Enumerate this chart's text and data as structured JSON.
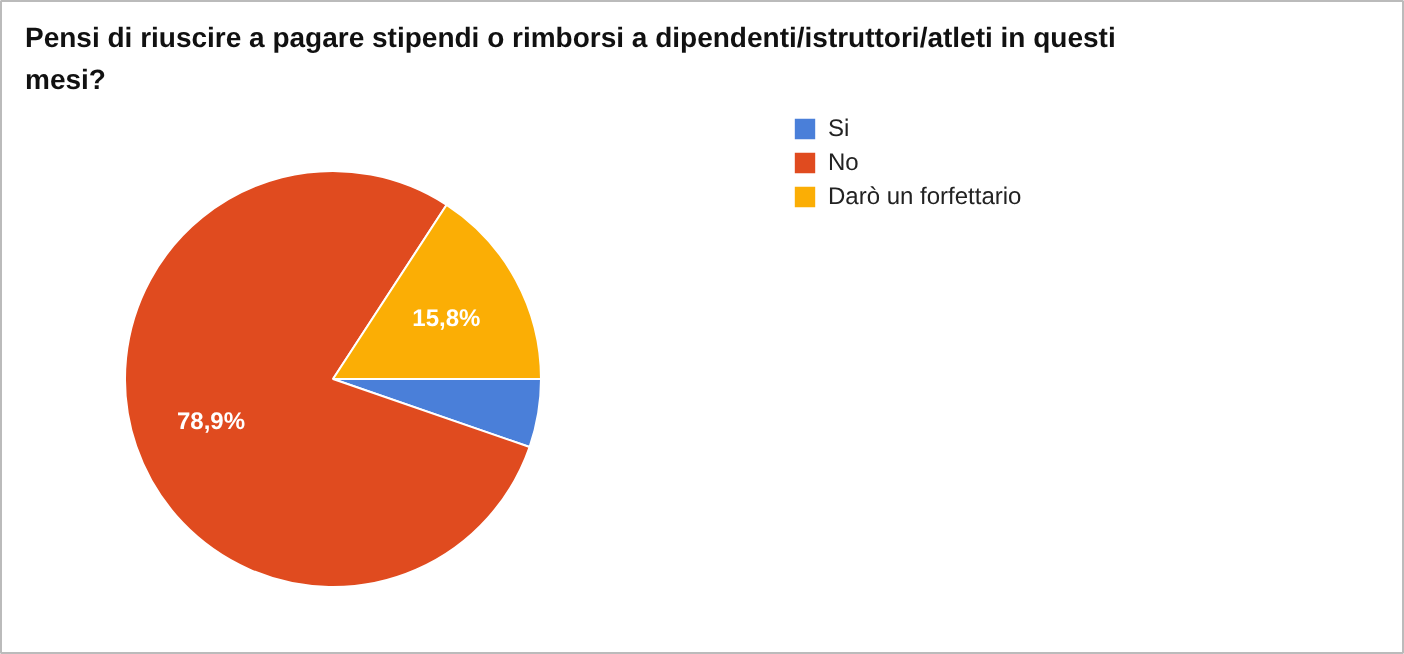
{
  "chart_data": {
    "type": "pie",
    "title": "Pensi di riuscire a pagare stipendi o rimborsi a dipendenti/istruttori/atleti in questi mesi?",
    "categories": [
      "Si",
      "No",
      "Darò un forfettario"
    ],
    "values": [
      5.3,
      78.9,
      15.8
    ],
    "colors": [
      "#4a7fd9",
      "#e04b1f",
      "#fbae05"
    ],
    "value_labels": [
      null,
      "78,9%",
      "15,8%"
    ],
    "legend": "right"
  }
}
